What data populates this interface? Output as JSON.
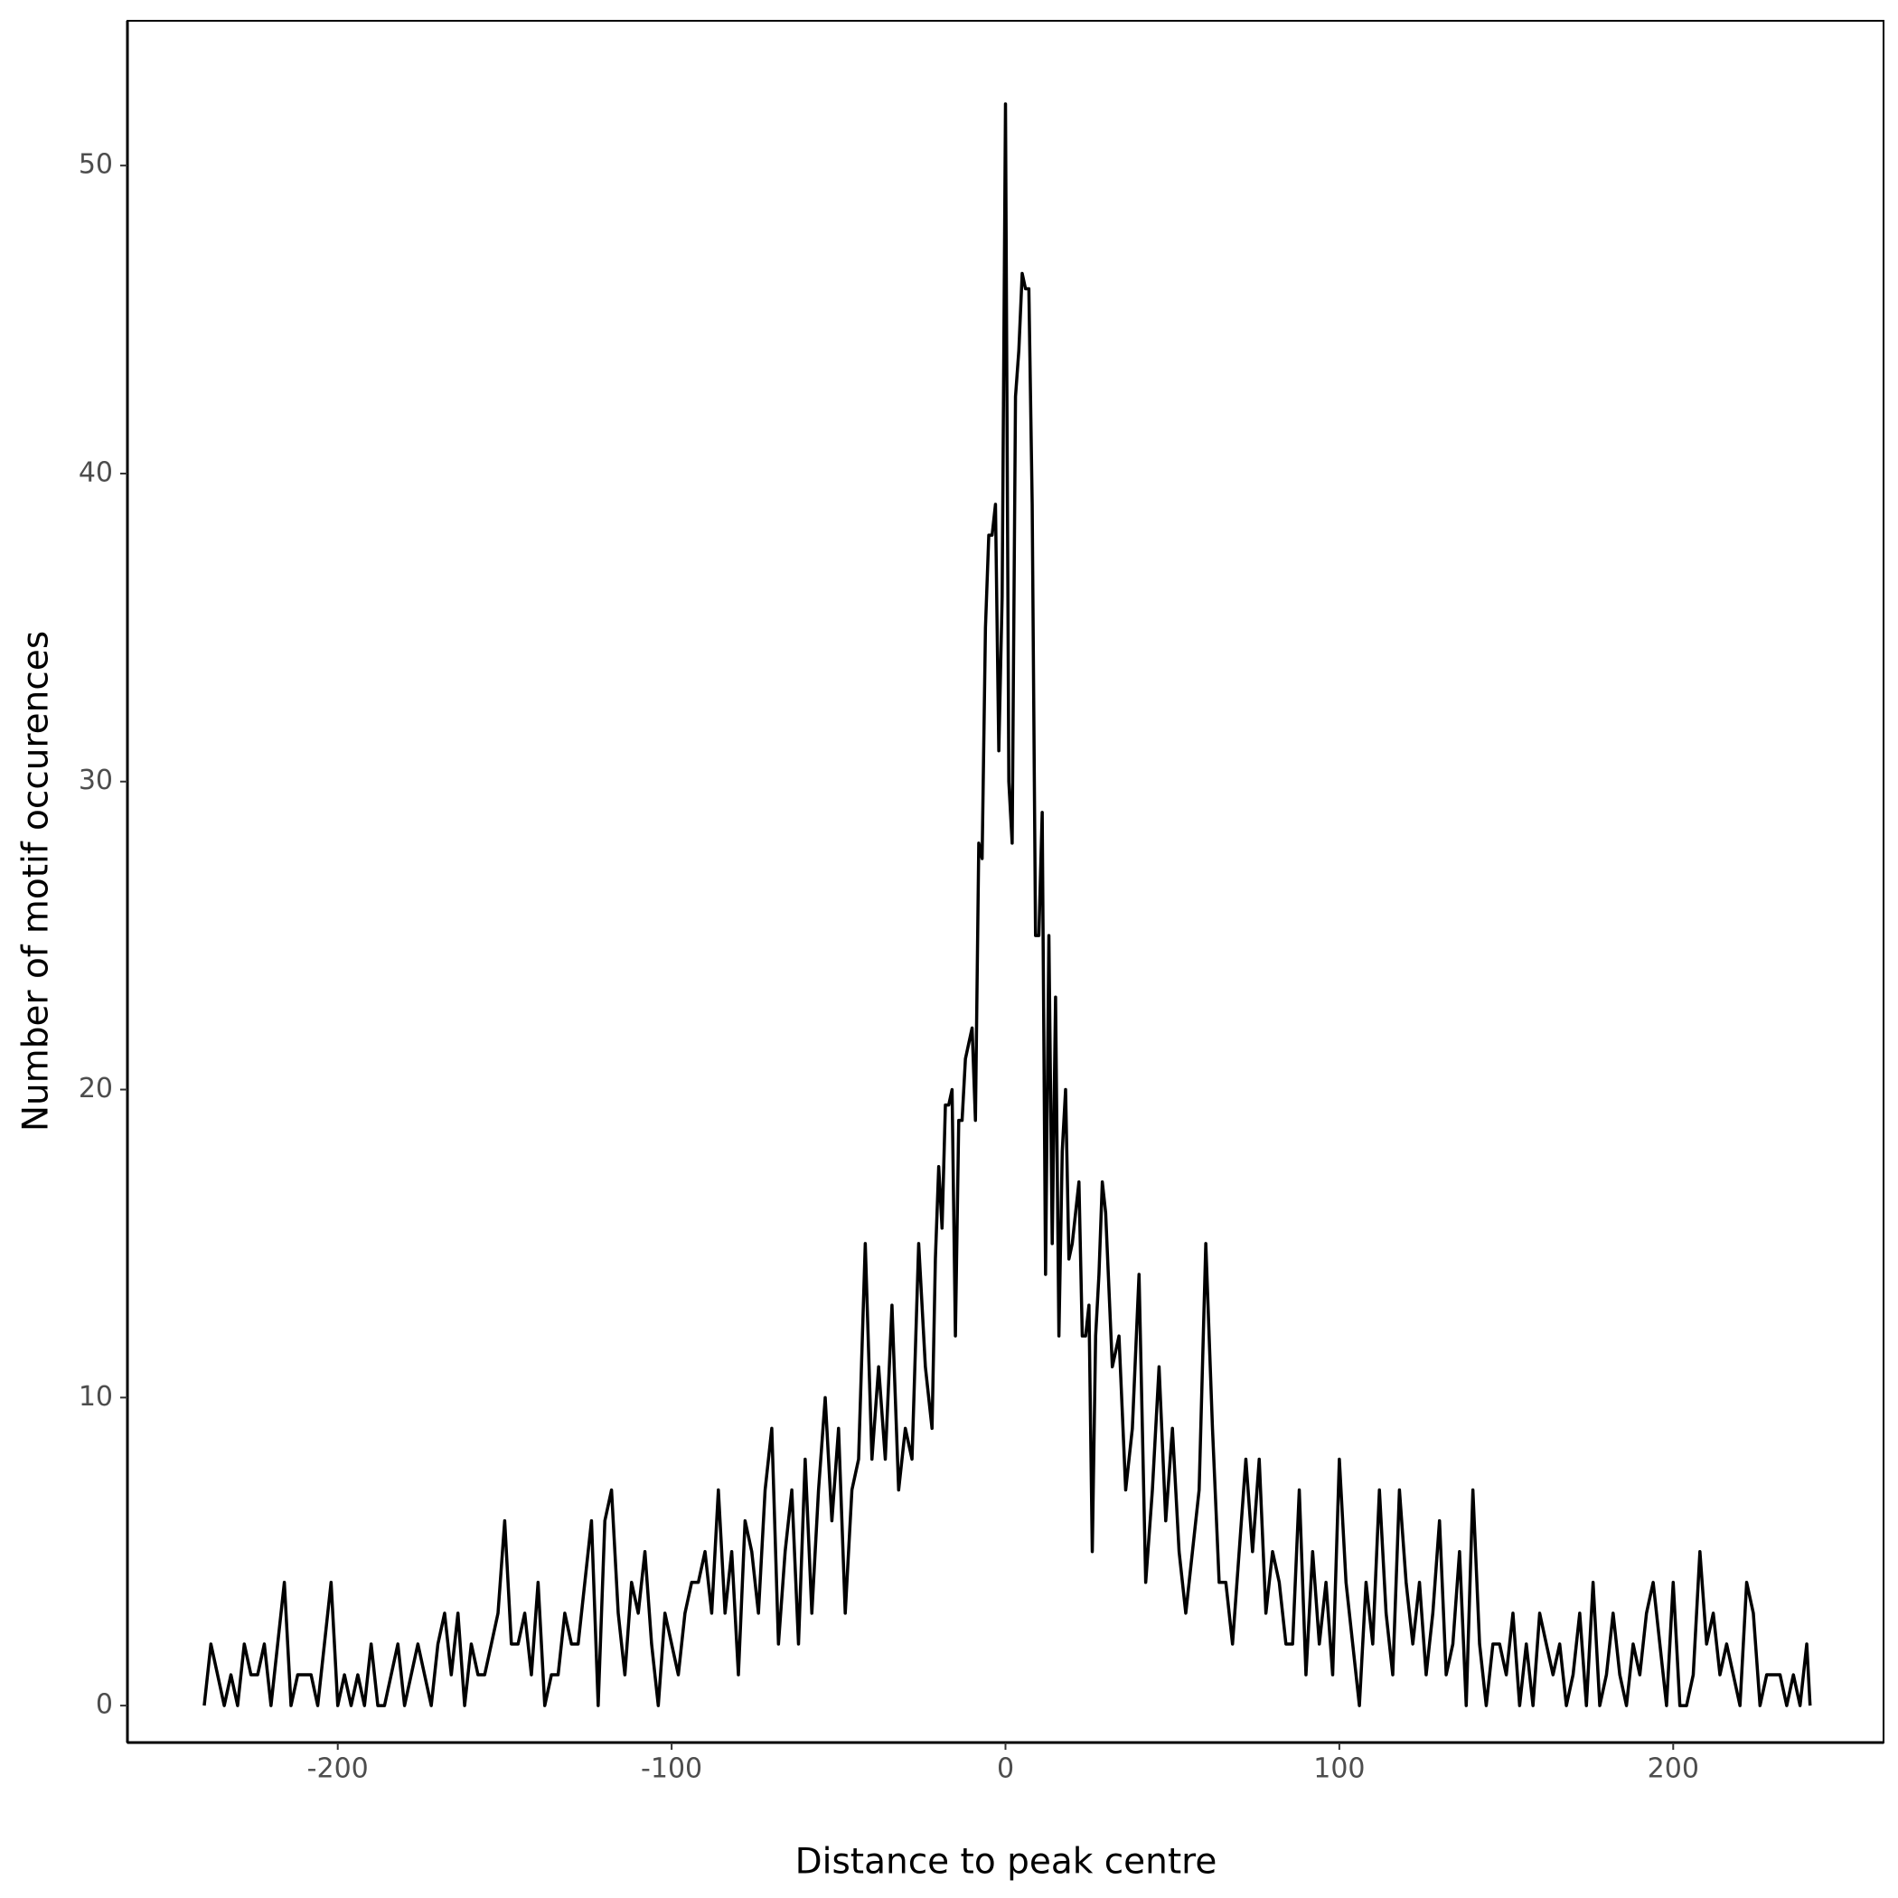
{
  "chart_data": {
    "type": "line",
    "x_label": "Distance to peak centre",
    "y_label": "Number of motif occurences",
    "x": [
      -240,
      -238,
      -236,
      -234,
      -232,
      -230,
      -228,
      -226,
      -224,
      -222,
      -220,
      -218,
      -216,
      -214,
      -212,
      -210,
      -208,
      -206,
      -204,
      -202,
      -200,
      -198,
      -196,
      -194,
      -192,
      -190,
      -188,
      -186,
      -184,
      -182,
      -180,
      -178,
      -176,
      -174,
      -172,
      -170,
      -168,
      -166,
      -164,
      -162,
      -160,
      -158,
      -156,
      -154,
      -152,
      -150,
      -148,
      -146,
      -144,
      -142,
      -140,
      -138,
      -136,
      -134,
      -132,
      -130,
      -128,
      -126,
      -124,
      -122,
      -120,
      -118,
      -116,
      -114,
      -112,
      -110,
      -108,
      -106,
      -104,
      -102,
      -100,
      -98,
      -96,
      -94,
      -92,
      -90,
      -88,
      -86,
      -84,
      -82,
      -80,
      -78,
      -76,
      -74,
      -72,
      -70,
      -68,
      -66,
      -64,
      -62,
      -60,
      -58,
      -56,
      -54,
      -52,
      -50,
      -48,
      -46,
      -44,
      -42,
      -40,
      -38,
      -36,
      -34,
      -32,
      -30,
      -28,
      -26,
      -24,
      -22,
      -21,
      -20,
      -19,
      -18,
      -17,
      -16,
      -15,
      -14,
      -13,
      -12,
      -11,
      -10,
      -9,
      -8,
      -7,
      -6,
      -5,
      -4,
      -3,
      -2,
      -1,
      0,
      1,
      2,
      3,
      4,
      5,
      6,
      7,
      8,
      9,
      10,
      11,
      12,
      13,
      14,
      15,
      16,
      17,
      18,
      19,
      20,
      21,
      22,
      23,
      24,
      25,
      26,
      27,
      28,
      29,
      30,
      32,
      34,
      36,
      38,
      40,
      42,
      44,
      46,
      48,
      50,
      52,
      54,
      56,
      58,
      60,
      62,
      64,
      66,
      68,
      70,
      72,
      74,
      76,
      78,
      80,
      82,
      84,
      86,
      88,
      90,
      92,
      94,
      96,
      98,
      100,
      102,
      104,
      106,
      108,
      110,
      112,
      114,
      116,
      118,
      120,
      122,
      124,
      126,
      128,
      130,
      132,
      134,
      136,
      138,
      140,
      142,
      144,
      146,
      148,
      150,
      152,
      154,
      156,
      158,
      160,
      162,
      164,
      166,
      168,
      170,
      172,
      174,
      176,
      178,
      180,
      182,
      184,
      186,
      188,
      190,
      192,
      194,
      196,
      198,
      200,
      202,
      204,
      206,
      208,
      210,
      212,
      214,
      216,
      218,
      220,
      222,
      224,
      226,
      228,
      230,
      232,
      234,
      236,
      238,
      240,
      241
    ],
    "values": [
      0,
      2,
      1,
      0,
      1,
      0,
      2,
      1,
      1,
      2,
      0,
      2,
      4,
      0,
      1,
      1,
      1,
      0,
      2,
      4,
      0,
      1,
      0,
      1,
      0,
      2,
      0,
      0,
      1,
      2,
      0,
      1,
      2,
      1,
      0,
      2,
      3,
      1,
      3,
      0,
      2,
      1,
      1,
      2,
      3,
      6,
      2,
      2,
      3,
      1,
      4,
      0,
      1,
      1,
      3,
      2,
      2,
      4,
      6,
      0,
      6,
      7,
      3,
      1,
      4,
      3,
      5,
      2,
      0,
      3,
      2,
      1,
      3,
      4,
      4,
      5,
      3,
      7,
      3,
      5,
      1,
      6,
      5,
      3,
      7,
      9,
      2,
      5,
      7,
      2,
      8,
      3,
      7,
      10,
      6,
      9,
      3,
      7,
      8,
      15,
      8,
      11,
      8,
      13,
      7,
      9,
      8,
      15,
      11,
      9,
      14.5,
      17.5,
      15.5,
      19.5,
      19.5,
      20,
      12,
      19,
      19,
      21,
      21.5,
      22,
      19,
      28,
      27.5,
      35,
      38,
      38,
      39,
      31,
      36,
      52,
      30,
      28,
      42.5,
      44,
      46.5,
      46,
      46,
      39,
      25,
      25,
      29,
      14,
      25,
      15,
      23,
      12,
      18,
      20,
      14.5,
      15,
      16,
      17,
      12,
      12,
      13,
      5,
      12,
      14,
      17,
      16,
      11,
      12,
      7,
      9,
      14,
      4,
      7,
      11,
      6,
      9,
      5,
      3,
      5,
      7,
      15,
      9,
      4,
      4,
      2,
      5,
      8,
      5,
      8,
      3,
      5,
      4,
      2,
      2,
      7,
      1,
      5,
      2,
      4,
      1,
      8,
      4,
      2,
      0,
      4,
      2,
      7,
      3,
      1,
      7,
      4,
      2,
      4,
      1,
      3,
      6,
      1,
      2,
      5,
      0,
      7,
      2,
      0,
      2,
      2,
      1,
      3,
      0,
      2,
      0,
      3,
      2,
      1,
      2,
      0,
      1,
      3,
      0,
      4,
      0,
      1,
      3,
      1,
      0,
      2,
      1,
      3,
      4,
      2,
      0,
      4,
      0,
      0,
      1,
      5,
      2,
      3,
      1,
      2,
      1,
      0,
      4,
      3,
      0,
      1,
      1,
      1,
      0,
      1,
      0,
      2,
      0
    ],
    "color": "#000000",
    "xlim": [
      -263,
      263
    ],
    "ylim": [
      -1.2,
      54.7
    ],
    "xticks": [
      -200,
      -100,
      0,
      100,
      200
    ],
    "yticks": [
      0,
      10,
      20,
      30,
      40,
      50
    ]
  }
}
